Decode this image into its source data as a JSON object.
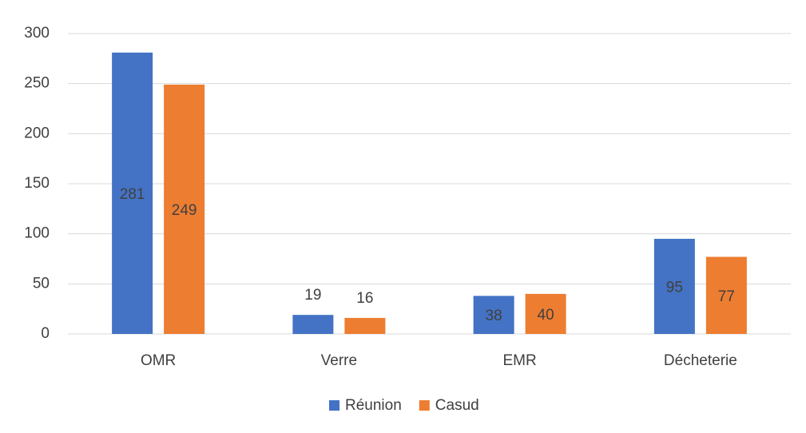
{
  "chart_data": {
    "type": "bar",
    "categories": [
      "OMR",
      "Verre",
      "EMR",
      "Décheterie"
    ],
    "series": [
      {
        "name": "Réunion",
        "color": "#4472c4",
        "values": [
          281,
          19,
          38,
          95
        ]
      },
      {
        "name": "Casud",
        "color": "#ed7d31",
        "values": [
          249,
          16,
          40,
          77
        ]
      }
    ],
    "ylim": [
      0,
      300
    ],
    "yticks": [
      0,
      50,
      100,
      150,
      200,
      250,
      300
    ],
    "grid": true,
    "legend": "bottom"
  }
}
